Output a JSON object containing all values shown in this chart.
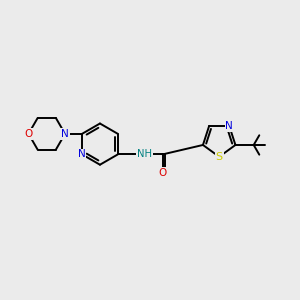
{
  "background_color": "#ebebeb",
  "bond_color": "#000000",
  "atom_colors": {
    "N": "#0000dd",
    "O": "#dd0000",
    "S": "#cccc00",
    "NH": "#008080",
    "C": "#000000"
  },
  "figsize": [
    3.0,
    3.0
  ],
  "dpi": 100,
  "lw": 1.4,
  "fs": 7.5
}
